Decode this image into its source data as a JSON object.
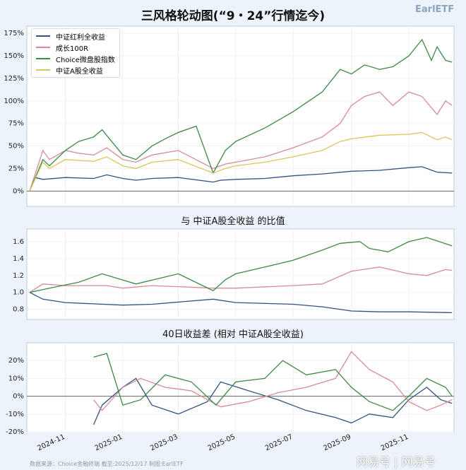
{
  "title": "三风格轮动图(“9・24”行情迄今)",
  "logo": "EarlETF",
  "source": "数据来源：Choice金融终端 截至:2025/12/17 制图:EarlETF",
  "watermark": "网易号 | 网易号",
  "x_ticks": [
    "2024-11",
    "2025-01",
    "2025-03",
    "2025-05",
    "2025-07",
    "2025-09",
    "2025-11"
  ],
  "colors": {
    "dividend": "#34507f",
    "growth": "#d98a96",
    "micro": "#3c8a46",
    "ashare": "#d9c55a"
  },
  "chart_data": [
    {
      "type": "line",
      "title": "三风格轮动图(“9・24”行情迄今)",
      "yunit": "%",
      "ylim": [
        -17,
        183
      ],
      "yticks": [
        0,
        25,
        50,
        75,
        100,
        125,
        150,
        175
      ],
      "legend": "top-left",
      "grid": true,
      "series": [
        {
          "name": "中证红利全收益",
          "key": "dividend",
          "points": [
            [
              "2024-09-24",
              0
            ],
            [
              "2024-09-30",
              15
            ],
            [
              "2024-10-08",
              13
            ],
            [
              "2024-11-01",
              15
            ],
            [
              "2024-12-01",
              14
            ],
            [
              "2024-12-15",
              18
            ],
            [
              "2025-01-01",
              14
            ],
            [
              "2025-01-15",
              12
            ],
            [
              "2025-02-01",
              14
            ],
            [
              "2025-03-01",
              15
            ],
            [
              "2025-04-07",
              10
            ],
            [
              "2025-04-15",
              12
            ],
            [
              "2025-05-01",
              13
            ],
            [
              "2025-06-01",
              14
            ],
            [
              "2025-07-01",
              17
            ],
            [
              "2025-08-01",
              19
            ],
            [
              "2025-09-01",
              22
            ],
            [
              "2025-10-01",
              23
            ],
            [
              "2025-11-01",
              26
            ],
            [
              "2025-11-15",
              27
            ],
            [
              "2025-12-01",
              21
            ],
            [
              "2025-12-17",
              20
            ]
          ]
        },
        {
          "name": "成长100R",
          "key": "growth",
          "points": [
            [
              "2024-09-24",
              0
            ],
            [
              "2024-10-08",
              45
            ],
            [
              "2024-10-15",
              35
            ],
            [
              "2024-11-01",
              45
            ],
            [
              "2024-11-15",
              42
            ],
            [
              "2024-12-01",
              40
            ],
            [
              "2024-12-15",
              48
            ],
            [
              "2025-01-01",
              35
            ],
            [
              "2025-01-15",
              32
            ],
            [
              "2025-02-01",
              40
            ],
            [
              "2025-03-01",
              45
            ],
            [
              "2025-04-07",
              25
            ],
            [
              "2025-04-20",
              30
            ],
            [
              "2025-05-01",
              32
            ],
            [
              "2025-06-01",
              38
            ],
            [
              "2025-07-01",
              48
            ],
            [
              "2025-08-01",
              60
            ],
            [
              "2025-08-20",
              75
            ],
            [
              "2025-09-01",
              95
            ],
            [
              "2025-09-15",
              105
            ],
            [
              "2025-10-01",
              110
            ],
            [
              "2025-10-15",
              95
            ],
            [
              "2025-11-01",
              110
            ],
            [
              "2025-11-15",
              105
            ],
            [
              "2025-12-01",
              85
            ],
            [
              "2025-12-10",
              100
            ],
            [
              "2025-12-17",
              95
            ]
          ]
        },
        {
          "name": "Choice微盘股指数",
          "key": "micro",
          "points": [
            [
              "2024-09-24",
              0
            ],
            [
              "2024-10-08",
              35
            ],
            [
              "2024-10-15",
              28
            ],
            [
              "2024-11-01",
              45
            ],
            [
              "2024-11-15",
              55
            ],
            [
              "2024-12-01",
              60
            ],
            [
              "2024-12-10",
              68
            ],
            [
              "2025-01-01",
              40
            ],
            [
              "2025-01-15",
              35
            ],
            [
              "2025-02-01",
              50
            ],
            [
              "2025-02-15",
              58
            ],
            [
              "2025-03-01",
              65
            ],
            [
              "2025-03-20",
              72
            ],
            [
              "2025-04-07",
              20
            ],
            [
              "2025-04-20",
              45
            ],
            [
              "2025-05-01",
              55
            ],
            [
              "2025-06-01",
              70
            ],
            [
              "2025-07-01",
              88
            ],
            [
              "2025-08-01",
              110
            ],
            [
              "2025-08-20",
              135
            ],
            [
              "2025-09-01",
              130
            ],
            [
              "2025-09-15",
              140
            ],
            [
              "2025-10-01",
              135
            ],
            [
              "2025-10-15",
              138
            ],
            [
              "2025-11-01",
              150
            ],
            [
              "2025-11-15",
              168
            ],
            [
              "2025-11-25",
              145
            ],
            [
              "2025-12-01",
              160
            ],
            [
              "2025-12-10",
              145
            ],
            [
              "2025-12-17",
              143
            ]
          ]
        },
        {
          "name": "中证A股全收益",
          "key": "ashare",
          "points": [
            [
              "2024-09-24",
              0
            ],
            [
              "2024-10-08",
              32
            ],
            [
              "2024-10-15",
              25
            ],
            [
              "2024-11-01",
              35
            ],
            [
              "2024-12-01",
              33
            ],
            [
              "2024-12-15",
              38
            ],
            [
              "2025-01-01",
              28
            ],
            [
              "2025-01-15",
              25
            ],
            [
              "2025-02-01",
              32
            ],
            [
              "2025-03-01",
              35
            ],
            [
              "2025-04-07",
              20
            ],
            [
              "2025-04-20",
              25
            ],
            [
              "2025-05-01",
              28
            ],
            [
              "2025-06-01",
              32
            ],
            [
              "2025-07-01",
              38
            ],
            [
              "2025-08-01",
              45
            ],
            [
              "2025-08-20",
              55
            ],
            [
              "2025-09-01",
              58
            ],
            [
              "2025-10-01",
              62
            ],
            [
              "2025-11-01",
              63
            ],
            [
              "2025-11-15",
              65
            ],
            [
              "2025-12-01",
              57
            ],
            [
              "2025-12-10",
              60
            ],
            [
              "2025-12-17",
              57
            ]
          ]
        }
      ]
    },
    {
      "type": "line",
      "title": "与 中证A股全收益 的比值",
      "ylim": [
        0.68,
        1.75
      ],
      "yticks": [
        0.8,
        1.0,
        1.2,
        1.4,
        1.6
      ],
      "grid": true,
      "series": [
        {
          "key": "dividend",
          "points": [
            [
              "2024-09-24",
              1.0
            ],
            [
              "2024-10-08",
              0.92
            ],
            [
              "2024-11-01",
              0.88
            ],
            [
              "2025-01-01",
              0.85
            ],
            [
              "2025-02-01",
              0.86
            ],
            [
              "2025-04-07",
              0.92
            ],
            [
              "2025-05-01",
              0.88
            ],
            [
              "2025-07-01",
              0.86
            ],
            [
              "2025-08-01",
              0.83
            ],
            [
              "2025-09-01",
              0.78
            ],
            [
              "2025-10-01",
              0.77
            ],
            [
              "2025-11-01",
              0.77
            ],
            [
              "2025-12-17",
              0.76
            ]
          ]
        },
        {
          "key": "growth",
          "points": [
            [
              "2024-09-24",
              1.0
            ],
            [
              "2024-10-08",
              1.1
            ],
            [
              "2024-11-01",
              1.08
            ],
            [
              "2024-12-15",
              1.08
            ],
            [
              "2025-01-01",
              1.05
            ],
            [
              "2025-02-01",
              1.08
            ],
            [
              "2025-04-07",
              1.05
            ],
            [
              "2025-05-01",
              1.05
            ],
            [
              "2025-07-01",
              1.08
            ],
            [
              "2025-08-01",
              1.1
            ],
            [
              "2025-09-01",
              1.25
            ],
            [
              "2025-10-01",
              1.3
            ],
            [
              "2025-11-01",
              1.22
            ],
            [
              "2025-11-20",
              1.2
            ],
            [
              "2025-12-10",
              1.27
            ],
            [
              "2025-12-17",
              1.26
            ]
          ]
        },
        {
          "key": "micro",
          "points": [
            [
              "2024-09-24",
              1.0
            ],
            [
              "2024-10-15",
              1.05
            ],
            [
              "2024-11-15",
              1.12
            ],
            [
              "2024-12-10",
              1.22
            ],
            [
              "2025-01-15",
              1.1
            ],
            [
              "2025-03-01",
              1.22
            ],
            [
              "2025-04-07",
              1.02
            ],
            [
              "2025-04-20",
              1.15
            ],
            [
              "2025-05-01",
              1.22
            ],
            [
              "2025-06-01",
              1.3
            ],
            [
              "2025-07-01",
              1.38
            ],
            [
              "2025-08-01",
              1.5
            ],
            [
              "2025-08-20",
              1.58
            ],
            [
              "2025-09-10",
              1.6
            ],
            [
              "2025-09-20",
              1.52
            ],
            [
              "2025-10-10",
              1.48
            ],
            [
              "2025-11-01",
              1.6
            ],
            [
              "2025-11-20",
              1.65
            ],
            [
              "2025-12-17",
              1.55
            ]
          ]
        }
      ]
    },
    {
      "type": "line",
      "title": "40日收益差 (相对 中证A股全收益)",
      "yunit": "%",
      "ylim": [
        -20,
        30
      ],
      "yticks": [
        -20,
        -10,
        0,
        10,
        20
      ],
      "grid": true,
      "series": [
        {
          "key": "dividend",
          "points": [
            [
              "2024-12-01",
              -16
            ],
            [
              "2024-12-10",
              -5
            ],
            [
              "2025-01-01",
              5
            ],
            [
              "2025-01-15",
              10
            ],
            [
              "2025-02-01",
              -5
            ],
            [
              "2025-03-01",
              -10
            ],
            [
              "2025-04-01",
              -3
            ],
            [
              "2025-04-15",
              8
            ],
            [
              "2025-05-15",
              3
            ],
            [
              "2025-06-15",
              -2
            ],
            [
              "2025-07-15",
              -8
            ],
            [
              "2025-08-15",
              -12
            ],
            [
              "2025-09-01",
              -15
            ],
            [
              "2025-09-20",
              -10
            ],
            [
              "2025-10-15",
              -12
            ],
            [
              "2025-11-01",
              -2
            ],
            [
              "2025-11-20",
              5
            ],
            [
              "2025-12-05",
              -2
            ],
            [
              "2025-12-17",
              -4
            ]
          ]
        },
        {
          "key": "growth",
          "points": [
            [
              "2024-12-01",
              -2
            ],
            [
              "2024-12-10",
              -8
            ],
            [
              "2025-01-01",
              5
            ],
            [
              "2025-01-20",
              10
            ],
            [
              "2025-02-15",
              5
            ],
            [
              "2025-03-15",
              3
            ],
            [
              "2025-04-15",
              -6
            ],
            [
              "2025-05-15",
              -3
            ],
            [
              "2025-06-15",
              2
            ],
            [
              "2025-07-15",
              5
            ],
            [
              "2025-08-15",
              10
            ],
            [
              "2025-09-01",
              25
            ],
            [
              "2025-09-20",
              15
            ],
            [
              "2025-10-15",
              8
            ],
            [
              "2025-11-01",
              -3
            ],
            [
              "2025-11-20",
              -8
            ],
            [
              "2025-12-05",
              -5
            ],
            [
              "2025-12-17",
              -2
            ]
          ]
        },
        {
          "key": "micro",
          "points": [
            [
              "2024-12-01",
              22
            ],
            [
              "2024-12-15",
              24
            ],
            [
              "2025-01-01",
              -5
            ],
            [
              "2025-01-20",
              -2
            ],
            [
              "2025-02-15",
              12
            ],
            [
              "2025-03-15",
              8
            ],
            [
              "2025-04-10",
              -5
            ],
            [
              "2025-05-01",
              8
            ],
            [
              "2025-06-01",
              10
            ],
            [
              "2025-06-20",
              20
            ],
            [
              "2025-07-15",
              12
            ],
            [
              "2025-08-15",
              15
            ],
            [
              "2025-09-01",
              5
            ],
            [
              "2025-09-20",
              -3
            ],
            [
              "2025-10-15",
              -8
            ],
            [
              "2025-11-01",
              0
            ],
            [
              "2025-11-20",
              10
            ],
            [
              "2025-12-10",
              5
            ],
            [
              "2025-12-17",
              0
            ]
          ]
        }
      ]
    }
  ]
}
